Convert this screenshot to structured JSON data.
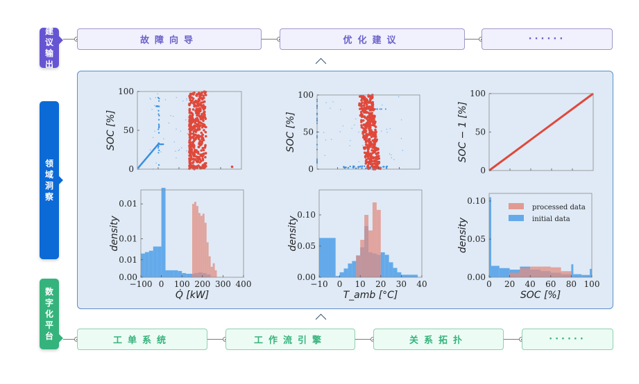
{
  "layers": {
    "top": {
      "label": "建议输出",
      "color": "#6655d3",
      "nodes": [
        "故障向导",
        "优化建议",
        "······"
      ]
    },
    "middle": {
      "label": "领域洞察",
      "color": "#0b6ad6"
    },
    "bottom": {
      "label": "数字化平台",
      "color": "#35b37c",
      "nodes": [
        "工单系统",
        "工作流引擎",
        "关系拓扑",
        "······"
      ]
    }
  },
  "icons": {
    "chevron_up": "chevron-up-icon",
    "connector_dot": "connector-dot-icon"
  },
  "chart_data": [
    {
      "id": "scatter-q-soc",
      "type": "scatter",
      "title": "",
      "xlabel": "",
      "ylabel": "SOC [%]",
      "xlim": [
        -100,
        400
      ],
      "ylim": [
        0,
        100
      ],
      "yticks": [
        "0",
        "50",
        "100"
      ],
      "xticks": [],
      "series": [
        {
          "name": "initial data",
          "color": "#3a8ee0",
          "note": "diagonal from (-100,0) to (0,32), vertical line at Q=0, sparse points"
        },
        {
          "name": "processed data",
          "color": "#e0483a",
          "note": "dense cluster Q≈150–230, SOC 0–100"
        }
      ]
    },
    {
      "id": "scatter-tamb-soc",
      "type": "scatter",
      "ylabel": "SOC [%]",
      "xlabel": "",
      "xlim": [
        -10,
        40
      ],
      "ylim": [
        0,
        100
      ],
      "yticks": [
        "0",
        "50",
        "100"
      ],
      "xticks": [],
      "series": [
        {
          "name": "initial data",
          "color": "#3a8ee0",
          "note": "points along SOC≈0 from T 5–25, vertical at T=-10"
        },
        {
          "name": "processed data",
          "color": "#e0483a",
          "note": "dense band T≈8–20, SOC 0–100, slanting"
        }
      ]
    },
    {
      "id": "line-soc-soc1",
      "type": "line",
      "ylabel": "SOC − 1 [%]",
      "xlabel": "",
      "xlim": [
        0,
        100
      ],
      "ylim": [
        0,
        100
      ],
      "yticks": [
        "0",
        "50",
        "100"
      ],
      "xticks": [],
      "series": [
        {
          "name": "processed data",
          "color": "#e0483a",
          "x": [
            0,
            100
          ],
          "y": [
            0,
            100
          ]
        }
      ]
    },
    {
      "id": "hist-q",
      "type": "bar",
      "xlabel": "Q̇ [kW]",
      "ylabel": "density",
      "xlim": [
        -100,
        400
      ],
      "ylim": [
        0,
        0.0125
      ],
      "xticks": [
        "−100",
        "0",
        "100",
        "200",
        "300",
        "400"
      ],
      "yticks": [
        "0.00",
        "0.01",
        "0.01",
        "0.01"
      ],
      "series": [
        {
          "name": "initial data",
          "color": "#4f9fe8",
          "bins": [
            -100,
            -80,
            -60,
            -40,
            -20,
            0,
            20,
            40,
            60,
            80,
            100,
            120,
            140,
            160,
            180,
            200,
            220,
            240
          ],
          "values": [
            0.0034,
            0.0036,
            0.0038,
            0.0044,
            0.0044,
            0.0128,
            0.001,
            0.001,
            0.001,
            0.0009,
            0.0006,
            0.0005,
            0.0005,
            0.0006,
            0.0007,
            0.0006,
            0.0004,
            0.0
          ]
        },
        {
          "name": "processed data",
          "color": "#e28c80",
          "bins": [
            150,
            160,
            170,
            180,
            190,
            200,
            210,
            220,
            230,
            240,
            250,
            260,
            270
          ],
          "values": [
            0.0105,
            0.0108,
            0.0102,
            0.0092,
            0.0088,
            0.0091,
            0.0078,
            0.005,
            0.003,
            0.0015,
            0.002,
            0.001,
            0.0
          ]
        }
      ]
    },
    {
      "id": "hist-tamb",
      "type": "bar",
      "xlabel": "T_amb [°C]",
      "ylabel": "density",
      "xlim": [
        -10,
        40
      ],
      "ylim": [
        0,
        0.14
      ],
      "xticks": [
        "−10",
        "0",
        "10",
        "20",
        "30",
        "40"
      ],
      "yticks": [
        "0.00",
        "0.05",
        "0.10"
      ],
      "series": [
        {
          "name": "initial data",
          "color": "#4f9fe8",
          "bins": [
            -10,
            -2,
            0,
            2,
            4,
            6,
            8,
            10,
            12,
            14,
            16,
            18,
            20,
            22,
            24,
            26,
            28,
            30
          ],
          "values": [
            0.063,
            0.002,
            0.008,
            0.014,
            0.022,
            0.026,
            0.035,
            0.048,
            0.082,
            0.04,
            0.038,
            0.036,
            0.04,
            0.036,
            0.024,
            0.015,
            0.008,
            0.004
          ]
        },
        {
          "name": "processed data",
          "color": "#e28c80",
          "bins": [
            8,
            10,
            12,
            14,
            16,
            18,
            20
          ],
          "values": [
            0.035,
            0.06,
            0.1,
            0.075,
            0.12,
            0.108,
            0.0
          ]
        }
      ]
    },
    {
      "id": "hist-soc",
      "type": "bar",
      "xlabel": "SOC [%]",
      "ylabel": "density",
      "xlim": [
        0,
        100
      ],
      "ylim": [
        0,
        0.11
      ],
      "xticks": [
        "0",
        "20",
        "40",
        "60",
        "80",
        "100"
      ],
      "yticks": [
        "0.00",
        "0.05",
        "0.10"
      ],
      "legend": {
        "position": "top-right",
        "entries": [
          "processed data",
          "initial data"
        ]
      },
      "series": [
        {
          "name": "initial data",
          "color": "#4f9fe8",
          "bins": [
            0,
            2,
            10,
            20,
            30,
            40,
            50,
            60,
            70,
            80,
            82,
            90,
            98
          ],
          "values": [
            0.105,
            0.015,
            0.012,
            0.01,
            0.014,
            0.01,
            0.008,
            0.006,
            0.004,
            0.017,
            0.004,
            0.003,
            0.011
          ]
        },
        {
          "name": "processed data",
          "color": "#e28c80",
          "bins": [
            20,
            30,
            40,
            50,
            60,
            70,
            80
          ],
          "values": [
            0.006,
            0.012,
            0.014,
            0.014,
            0.013,
            0.008,
            0.0
          ]
        }
      ]
    }
  ]
}
